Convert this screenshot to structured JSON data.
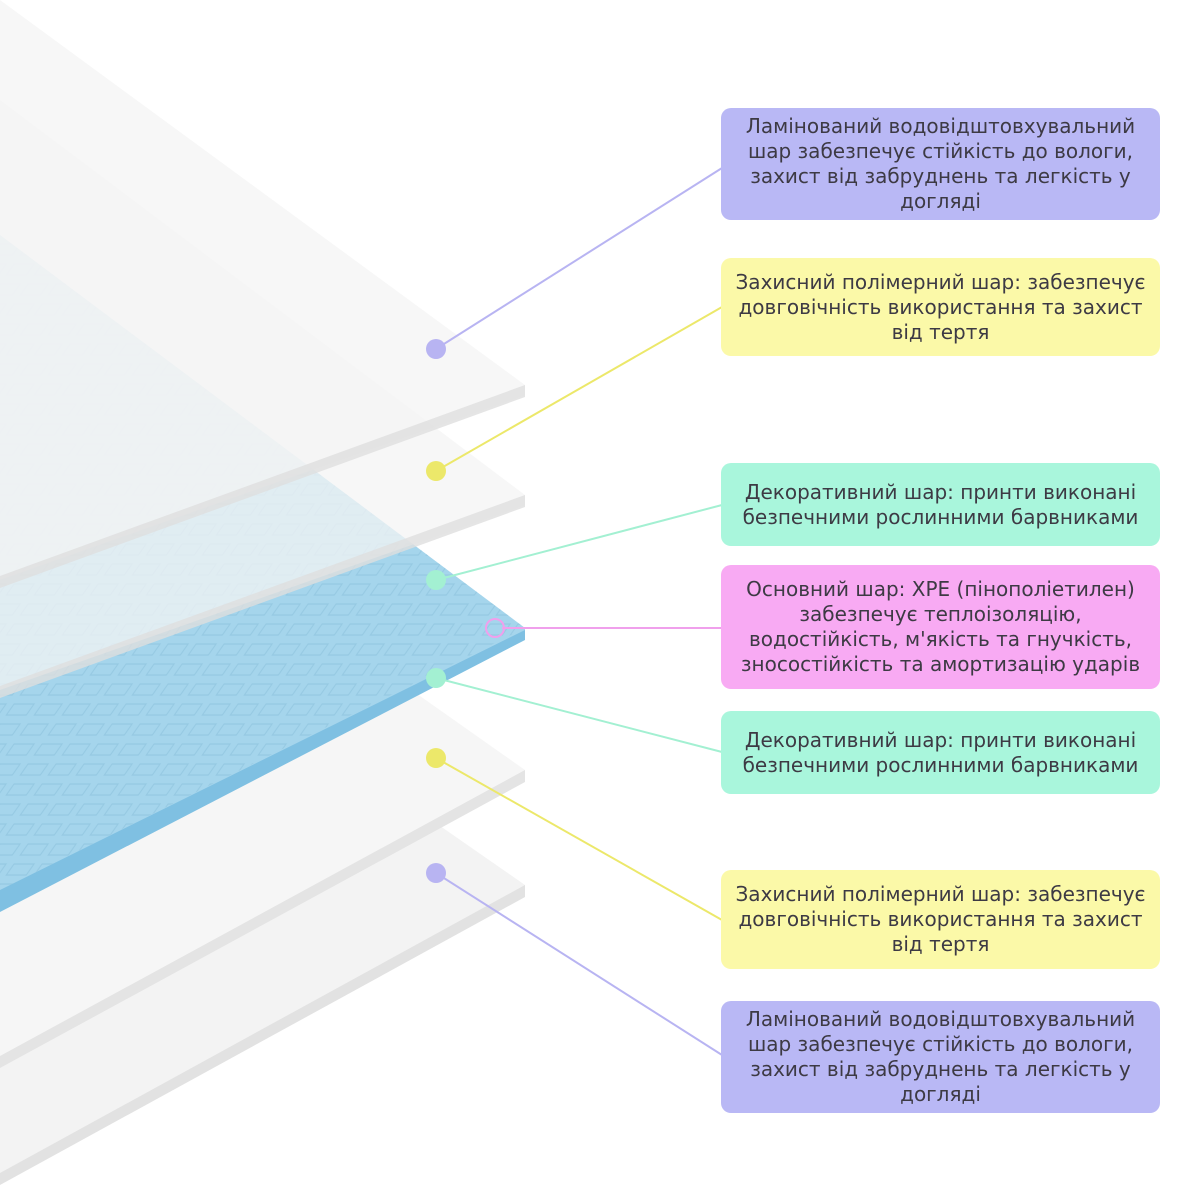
{
  "colors": {
    "laminated": "#b9b8f5",
    "protective": "#fbf9a8",
    "decorative": "#a9f6dc",
    "core": "#f8aaf3",
    "core_layer_fill": "#a3d4ec",
    "sheet_fill": "#f1f1f1"
  },
  "labels": [
    {
      "text": "Ламінований водовідштовхувальний шар забезпечує стійкість до вологи, захист від забруднень та легкість у догляді",
      "kind": "laminated"
    },
    {
      "text": "Захисний полімерний шар: забезпечує довговічність використання та захист від тертя",
      "kind": "protective"
    },
    {
      "text": "Декоративний шар: принти виконані безпечними рослинними барвниками",
      "kind": "decorative"
    },
    {
      "text": "Основний шар: ХРЕ (пінополіетилен) забезпечує теплоізоляцію, водостійкість, м'якість та гнучкість, зносостійкість та амортизацію ударів",
      "kind": "core"
    },
    {
      "text": "Декоративний шар: принти виконані безпечними рослинними барвниками",
      "kind": "decorative"
    },
    {
      "text": "Захисний полімерний шар: забезпечує довговічність використання та захист від тертя",
      "kind": "protective"
    },
    {
      "text": "Ламінований водовідштовхувальний шар забезпечує стійкість до вологи, захист від забруднень та легкість у догляді",
      "kind": "laminated"
    }
  ]
}
